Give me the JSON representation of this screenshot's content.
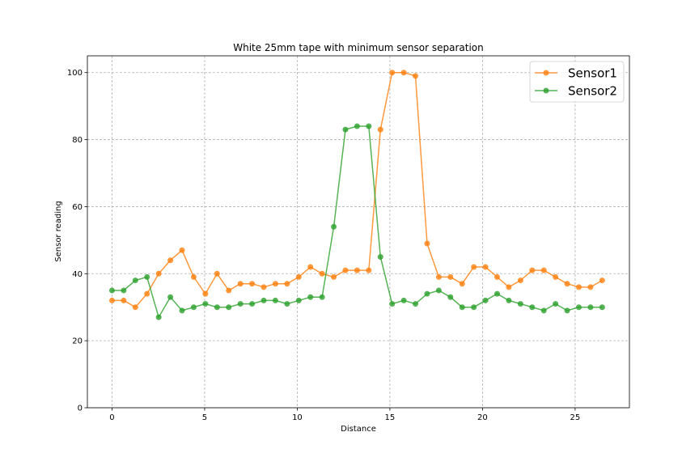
{
  "chart_data": {
    "type": "line",
    "title": "White 25mm tape with minimum sensor separation",
    "xlabel": "Distance",
    "ylabel": "Sensor reading",
    "xlim": [
      -1.33,
      27.93
    ],
    "ylim": [
      0,
      105
    ],
    "xticks": [
      "0",
      "5",
      "10",
      "15",
      "20",
      "25"
    ],
    "yticks": [
      "0",
      "20",
      "40",
      "60",
      "80",
      "100"
    ],
    "grid": true,
    "legend": "top-right",
    "series": [
      {
        "name": "Sensor1",
        "color": "#ff7f0e",
        "x": [
          0,
          0.63,
          1.26,
          1.89,
          2.52,
          3.15,
          3.78,
          4.41,
          5.04,
          5.67,
          6.3,
          6.93,
          7.56,
          8.19,
          8.82,
          9.45,
          10.08,
          10.71,
          11.34,
          11.97,
          12.6,
          13.23,
          13.86,
          14.49,
          15.12,
          15.75,
          16.38,
          17.01,
          17.64,
          18.27,
          18.9,
          19.53,
          20.16,
          20.79,
          21.42,
          22.05,
          22.68,
          23.31,
          23.94,
          24.57,
          25.2,
          25.83,
          26.46
        ],
        "values": [
          32,
          32,
          30,
          34,
          40,
          44,
          47,
          39,
          34,
          40,
          35,
          37,
          37,
          36,
          37,
          37,
          39,
          42,
          40,
          39,
          41,
          41,
          41,
          83,
          100,
          100,
          99,
          49,
          39,
          39,
          37,
          42,
          42,
          39,
          36,
          38,
          41,
          41,
          39,
          37,
          36,
          36,
          38
        ]
      },
      {
        "name": "Sensor2",
        "color": "#2ca02c",
        "x": [
          0,
          0.63,
          1.26,
          1.89,
          2.52,
          3.15,
          3.78,
          4.41,
          5.04,
          5.67,
          6.3,
          6.93,
          7.56,
          8.19,
          8.82,
          9.45,
          10.08,
          10.71,
          11.34,
          11.97,
          12.6,
          13.23,
          13.86,
          14.49,
          15.12,
          15.75,
          16.38,
          17.01,
          17.64,
          18.27,
          18.9,
          19.53,
          20.16,
          20.79,
          21.42,
          22.05,
          22.68,
          23.31,
          23.94,
          24.57,
          25.2,
          25.83,
          26.46
        ],
        "values": [
          35,
          35,
          38,
          39,
          27,
          33,
          29,
          30,
          31,
          30,
          30,
          31,
          31,
          32,
          32,
          31,
          32,
          33,
          33,
          54,
          83,
          84,
          84,
          45,
          31,
          32,
          31,
          34,
          35,
          33,
          30,
          30,
          32,
          34,
          32,
          31,
          30,
          29,
          31,
          29,
          30,
          30,
          30
        ]
      }
    ]
  }
}
